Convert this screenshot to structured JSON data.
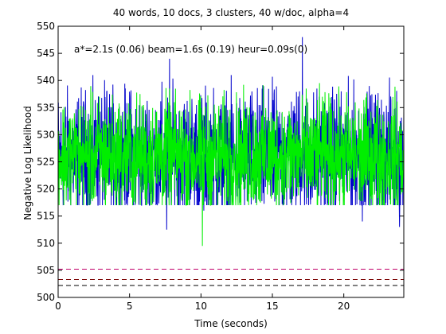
{
  "chart_data": {
    "type": "line",
    "title": "40 words, 10 docs, 3 clusters, 40 w/doc, alpha=4",
    "xlabel": "Time (seconds)",
    "ylabel": "Negative Log Likelihood",
    "xlim": [
      0,
      24.2
    ],
    "ylim": [
      500,
      550
    ],
    "xticks": [
      0,
      5,
      10,
      15,
      20
    ],
    "yticks": [
      500,
      505,
      510,
      515,
      520,
      525,
      530,
      535,
      540,
      545,
      550
    ],
    "grid": false,
    "legend": "none",
    "annotation": "a*=2.1s (0.06) beam=1.6s (0.19) heur=0.09s(0)",
    "series": [
      {
        "color": "#0000cc",
        "style": "solid",
        "generated": true,
        "points_per_second": 60,
        "center": 526,
        "spread": 9,
        "min_clip": 517,
        "max_clip": 541,
        "spikes": [
          {
            "x": 1.2,
            "y": 531
          },
          {
            "x": 3.4,
            "y": 538
          },
          {
            "x": 7.8,
            "y": 544
          },
          {
            "x": 7.6,
            "y": 512.5
          },
          {
            "x": 10.2,
            "y": 516
          },
          {
            "x": 17.1,
            "y": 548
          },
          {
            "x": 16.9,
            "y": 538
          },
          {
            "x": 21.3,
            "y": 514
          },
          {
            "x": 23.9,
            "y": 513
          }
        ]
      },
      {
        "color": "#00ee00",
        "style": "solid",
        "generated": true,
        "points_per_second": 60,
        "center": 526,
        "spread": 8,
        "min_clip": 517,
        "max_clip": 540,
        "spikes": [
          {
            "x": 0.8,
            "y": 518
          },
          {
            "x": 6.2,
            "y": 517
          },
          {
            "x": 10.1,
            "y": 509.5
          },
          {
            "x": 13.4,
            "y": 535
          },
          {
            "x": 18.5,
            "y": 537
          },
          {
            "x": 24.0,
            "y": 519
          }
        ]
      },
      {
        "color": "#c0006a",
        "style": "dashed",
        "values": [
          505.2,
          505.2
        ],
        "x": [
          0,
          24.2
        ]
      },
      {
        "color": "#7a0000",
        "style": "dashed",
        "values": [
          503.3,
          503.3
        ],
        "x": [
          0,
          24.2
        ]
      },
      {
        "color": "#000000",
        "style": "dashed",
        "values": [
          502.2,
          502.2
        ],
        "x": [
          0,
          24.2
        ]
      }
    ]
  }
}
